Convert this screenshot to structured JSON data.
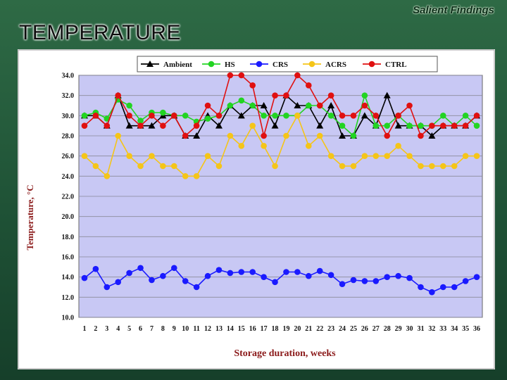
{
  "header": {
    "tagline": "Salient Findings",
    "title": "TEMPERATURE"
  },
  "colors": {
    "plot_bg": "#c8c8f4",
    "Ambient": "#000000",
    "HS": "#22d422",
    "CRS": "#1a1aff",
    "ACRS": "#f5c518",
    "CTRL": "#e01010"
  },
  "chart_data": {
    "type": "line",
    "title": "",
    "xlabel": "Storage duration, weeks",
    "ylabel": "Temperature, °C",
    "ylim": [
      10.0,
      34.0
    ],
    "yticks": [
      "10.0",
      "12.0",
      "14.0",
      "16.0",
      "18.0",
      "20.0",
      "22.0",
      "24.0",
      "26.0",
      "28.0",
      "30.0",
      "32.0",
      "34.0"
    ],
    "categories": [
      "1",
      "2",
      "3",
      "4",
      "5",
      "6",
      "7",
      "8",
      "9",
      "10",
      "11",
      "12",
      "13",
      "14",
      "15",
      "16",
      "17",
      "18",
      "19",
      "20",
      "21",
      "22",
      "23",
      "24",
      "25",
      "26",
      "27",
      "28",
      "29",
      "30",
      "31",
      "32",
      "33",
      "34",
      "35",
      "36"
    ],
    "legend_position": "top",
    "series": [
      {
        "name": "Ambient",
        "marker": "triangle",
        "values": [
          30,
          30,
          29,
          32,
          29,
          29,
          29,
          30,
          30,
          28,
          28,
          30,
          29,
          31,
          30,
          31,
          31,
          29,
          32,
          31,
          31,
          29,
          31,
          28,
          28,
          30,
          29,
          32,
          29,
          29,
          29,
          28,
          29,
          29,
          29,
          30
        ]
      },
      {
        "name": "HS",
        "marker": "circle",
        "values": [
          30,
          30.3,
          29.7,
          31.6,
          31,
          29.5,
          30.3,
          30.3,
          30,
          30,
          29.4,
          29.7,
          30,
          31,
          31.5,
          31,
          30,
          30,
          30,
          30,
          31,
          31,
          30,
          29,
          28,
          32,
          29,
          29,
          30,
          29,
          29,
          29,
          30,
          29,
          30,
          29
        ]
      },
      {
        "name": "CRS",
        "marker": "circle",
        "values": [
          13.9,
          14.8,
          13,
          13.5,
          14.4,
          14.9,
          13.7,
          14.1,
          14.9,
          13.6,
          13,
          14.1,
          14.7,
          14.4,
          14.5,
          14.5,
          14,
          13.5,
          14.5,
          14.5,
          14.1,
          14.6,
          14.2,
          13.3,
          13.7,
          13.6,
          13.6,
          14,
          14.1,
          13.9,
          13,
          12.5,
          13,
          13,
          13.6,
          14
        ]
      },
      {
        "name": "ACRS",
        "marker": "circle",
        "values": [
          26,
          25,
          24,
          28,
          26,
          25,
          26,
          25,
          25,
          24,
          24,
          26,
          25,
          28,
          27,
          29,
          27,
          25,
          28,
          30,
          27,
          28,
          26,
          25,
          25,
          26,
          26,
          26,
          27,
          26,
          25,
          25,
          25,
          25,
          26,
          26
        ]
      },
      {
        "name": "CTRL",
        "marker": "circle",
        "values": [
          29,
          30,
          29,
          32,
          30,
          29,
          30,
          29,
          30,
          28,
          29,
          31,
          30,
          34,
          34,
          33,
          28,
          32,
          32,
          34,
          33,
          31,
          32,
          30,
          30,
          31,
          30,
          28,
          30,
          31,
          28,
          29,
          29,
          29,
          29,
          30
        ]
      }
    ]
  }
}
